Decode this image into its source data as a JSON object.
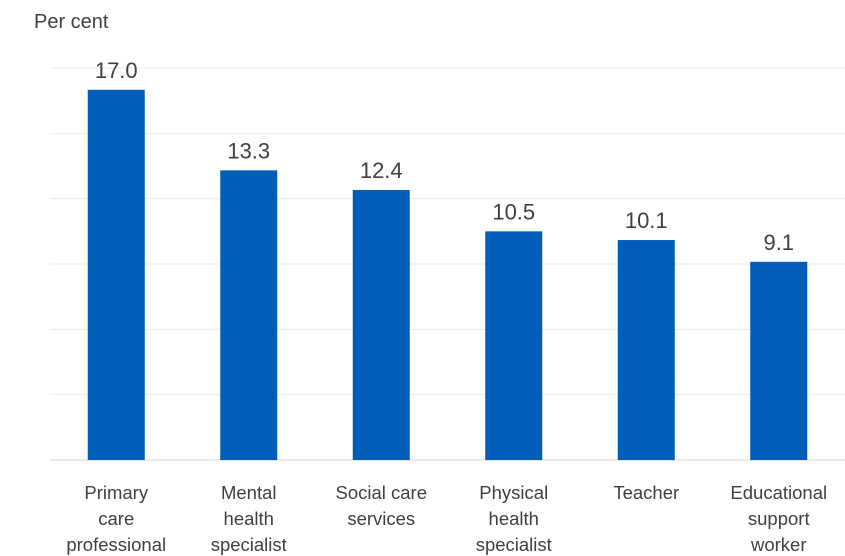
{
  "chart_data": {
    "type": "bar",
    "ylabel": "Per cent",
    "categories": [
      [
        "Primary",
        "care",
        "professional"
      ],
      [
        "Mental",
        "health",
        "specialist"
      ],
      [
        "Social care",
        "services"
      ],
      [
        "Physical",
        "health",
        "specialist"
      ],
      [
        "Teacher"
      ],
      [
        "Educational",
        "support",
        "worker"
      ]
    ],
    "values": [
      17.0,
      13.3,
      12.4,
      10.5,
      10.1,
      9.1
    ],
    "ylim": [
      0,
      18
    ],
    "grid": true,
    "bar_color": "#005EB8"
  }
}
